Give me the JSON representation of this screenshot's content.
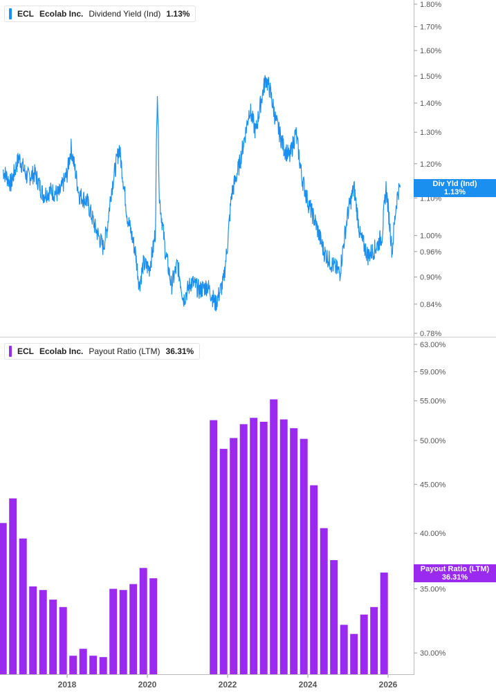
{
  "chart_data": [
    {
      "type": "line",
      "ticker": "ECL",
      "company": "Ecolab Inc.",
      "metric": "Dividend Yield (Ind)",
      "current_value": "1.13%",
      "tag_label": "Div Yld (Ind)",
      "tag_value": "1.13%",
      "color": "#1a8ff0",
      "y_scale": "log",
      "ylim": [
        0.78,
        1.8
      ],
      "y_ticks": [
        0.78,
        0.84,
        0.9,
        0.96,
        1.0,
        1.1,
        1.2,
        1.3,
        1.4,
        1.5,
        1.6,
        1.7,
        1.8
      ],
      "y_tick_labels": [
        "0.78%",
        "0.84%",
        "0.90%",
        "0.96%",
        "1.00%",
        "1.10%",
        "1.20%",
        "1.30%",
        "1.40%",
        "1.50%",
        "1.60%",
        "1.70%",
        "1.80%"
      ],
      "x": [
        2016.4,
        2016.6,
        2016.8,
        2017.0,
        2017.2,
        2017.4,
        2017.6,
        2017.8,
        2018.0,
        2018.1,
        2018.3,
        2018.5,
        2018.7,
        2018.9,
        2019.0,
        2019.1,
        2019.3,
        2019.5,
        2019.7,
        2019.8,
        2019.9,
        2020.05,
        2020.15,
        2020.2,
        2020.25,
        2020.3,
        2020.45,
        2020.6,
        2020.75,
        2020.9,
        2021.1,
        2021.3,
        2021.5,
        2021.7,
        2021.9,
        2022.0,
        2022.1,
        2022.3,
        2022.45,
        2022.55,
        2022.7,
        2022.85,
        2022.95,
        2023.05,
        2023.2,
        2023.4,
        2023.55,
        2023.7,
        2023.85,
        2024.0,
        2024.2,
        2024.4,
        2024.6,
        2024.8,
        2025.0,
        2025.15,
        2025.3,
        2025.5,
        2025.7,
        2025.85,
        2025.95,
        2026.1,
        2026.2,
        2026.25,
        2026.3
      ],
      "y": [
        1.18,
        1.14,
        1.22,
        1.16,
        1.17,
        1.11,
        1.12,
        1.11,
        1.17,
        1.25,
        1.11,
        1.09,
        1.02,
        0.97,
        1.02,
        1.12,
        1.25,
        1.05,
        0.96,
        0.88,
        0.93,
        0.92,
        0.97,
        1.01,
        1.46,
        1.1,
        0.96,
        0.88,
        0.93,
        0.85,
        0.89,
        0.87,
        0.88,
        0.84,
        0.89,
        0.98,
        1.11,
        1.2,
        1.3,
        1.38,
        1.3,
        1.42,
        1.49,
        1.45,
        1.34,
        1.25,
        1.22,
        1.3,
        1.16,
        1.09,
        1.03,
        0.96,
        0.93,
        0.91,
        1.06,
        1.13,
        1.0,
        0.95,
        0.97,
        1.0,
        1.13,
        0.96,
        1.08,
        1.12,
        1.13
      ]
    },
    {
      "type": "bar",
      "ticker": "ECL",
      "company": "Ecolab Inc.",
      "metric": "Payout Ratio (LTM)",
      "current_value": "36.31%",
      "tag_label": "Payout Ratio (LTM)",
      "tag_value": "36.31%",
      "color": "#9a2af0",
      "y_scale": "log",
      "ylim": [
        28.5,
        63
      ],
      "y_ticks": [
        30,
        35,
        40,
        45,
        50,
        55,
        59,
        63
      ],
      "y_tick_labels": [
        "30.00%",
        "35.00%",
        "40.00%",
        "45.00%",
        "50.00%",
        "55.00%",
        "59.00%",
        "63.00%"
      ],
      "x_ticks": [
        2018,
        2020,
        2022,
        2024,
        2026
      ],
      "x_tick_labels": [
        "2018",
        "2020",
        "2022",
        "2024",
        "2026"
      ],
      "x": [
        2016.4,
        2016.65,
        2016.9,
        2017.15,
        2017.4,
        2017.65,
        2017.9,
        2018.15,
        2018.4,
        2018.65,
        2018.9,
        2019.15,
        2019.4,
        2019.65,
        2019.9,
        2020.15,
        2021.65,
        2021.9,
        2022.15,
        2022.4,
        2022.65,
        2022.9,
        2023.15,
        2023.4,
        2023.65,
        2023.9,
        2024.15,
        2024.4,
        2024.65,
        2024.9,
        2025.15,
        2025.4,
        2025.65,
        2025.9
      ],
      "values": [
        41.0,
        43.5,
        39.5,
        35.2,
        34.9,
        34.1,
        33.5,
        29.8,
        30.3,
        29.8,
        29.7,
        35.0,
        34.9,
        35.4,
        36.8,
        35.9,
        52.5,
        49.0,
        50.3,
        52.0,
        52.8,
        52.3,
        55.2,
        52.6,
        51.5,
        50.2,
        44.9,
        40.5,
        37.5,
        32.1,
        31.4,
        32.9,
        33.5,
        36.4
      ]
    }
  ]
}
